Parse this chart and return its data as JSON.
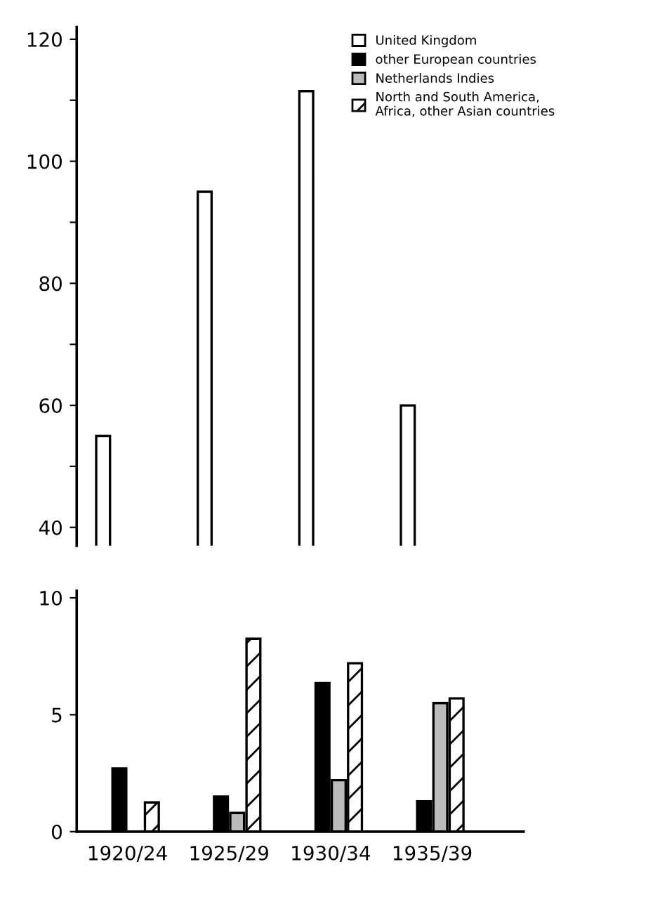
{
  "chart_data": [
    {
      "type": "bar",
      "categories": [
        "1920/24",
        "1925/29",
        "1930/34",
        "1935/39"
      ],
      "series": [
        {
          "name": "United Kingdom",
          "color": "#ffffff",
          "values": [
            55,
            95,
            111.5,
            60
          ]
        },
        {
          "name": "other European countries",
          "color": "#000000",
          "values": [
            null,
            null,
            null,
            null
          ]
        },
        {
          "name": "Netherlands Indies",
          "color": "#bbbbbb",
          "values": [
            null,
            null,
            null,
            null
          ]
        },
        {
          "name": "North and South America,\nAfrica, other Asian countries",
          "color": "#000000",
          "values": [
            null,
            null,
            null,
            null
          ]
        }
      ],
      "ylim": [
        37,
        122
      ],
      "yticks": [
        40,
        {
          "value": 50,
          "label": null
        },
        60,
        {
          "value": 70,
          "label": null
        },
        80,
        {
          "value": 90,
          "label": null
        },
        100,
        {
          "value": 110,
          "label": null
        },
        120
      ],
      "tick_labels": "y",
      "legend": "top right",
      "grid": false
    },
    {
      "type": "bar",
      "categories": [
        "1920/24",
        "1925/29",
        "1930/34",
        "1935/39"
      ],
      "series": [
        {
          "values": [
            null,
            null,
            null,
            null
          ]
        },
        {
          "color": "#000000",
          "values": [
            2.7,
            1.5,
            6.35,
            1.3
          ]
        },
        {
          "color": "#bbbbbb",
          "values": [
            null,
            0.8,
            2.2,
            5.5
          ]
        },
        {
          "color": "#000000",
          "values": [
            1.25,
            8.25,
            7.2,
            5.7
          ]
        }
      ],
      "ylim": [
        0,
        10.3
      ],
      "yticks": [
        0,
        5,
        10
      ],
      "grid": false
    }
  ]
}
